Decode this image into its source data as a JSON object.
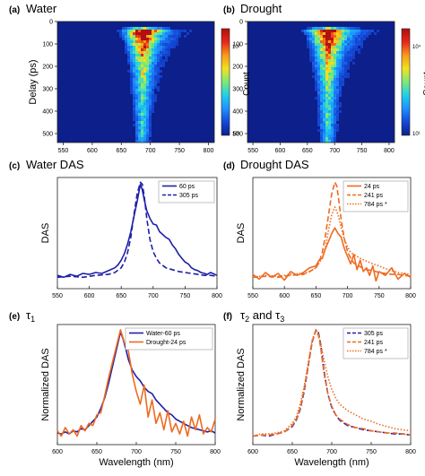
{
  "colors": {
    "blue": "#1f1fa8",
    "orange": "#ef6a1f",
    "axis": "#222222"
  },
  "heat_colormap": [
    "#0d1f8a",
    "#1448d8",
    "#1e90ff",
    "#1fd0e8",
    "#7de87a",
    "#f2e21e",
    "#f79a1a",
    "#e8281a",
    "#b01010"
  ],
  "chart_data": [
    {
      "id": "a",
      "type": "heatmap",
      "panel_letter": "(a)",
      "title": "Water",
      "ylabel": "Delay (ps)",
      "xlabel": "",
      "x_ticks": [
        "550",
        "600",
        "650",
        "700",
        "750",
        "800"
      ],
      "y_ticks": [
        "0",
        "100",
        "200",
        "300",
        "400",
        "500"
      ],
      "xlim": [
        540,
        810
      ],
      "ylim": [
        0,
        540
      ],
      "colorbar": {
        "label": "Count",
        "max_label": "10²",
        "min_label": "10¹"
      },
      "signal": {
        "peak_wavelength": 682,
        "onset_delay": 30,
        "half_width_at_onset": 35,
        "half_width_at_end": 12
      }
    },
    {
      "id": "b",
      "type": "heatmap",
      "panel_letter": "(b)",
      "title": "Drought",
      "ylabel": "",
      "xlabel": "",
      "x_ticks": [
        "550",
        "600",
        "650",
        "700",
        "750",
        "800"
      ],
      "y_ticks": [
        "0",
        "100",
        "200",
        "300",
        "400",
        "500"
      ],
      "xlim": [
        540,
        810
      ],
      "ylim": [
        0,
        540
      ],
      "colorbar": {
        "label": "Count",
        "max_label": "10⁴",
        "min_label": "10¹"
      },
      "signal": {
        "peak_wavelength": 682,
        "onset_delay": 30,
        "half_width_at_onset": 40,
        "half_width_at_end": 14
      }
    },
    {
      "id": "c",
      "type": "line",
      "panel_letter": "(c)",
      "title": "Water DAS",
      "ylabel": "DAS",
      "xlabel": "",
      "x_ticks": [
        "550",
        "600",
        "650",
        "700",
        "750",
        "800"
      ],
      "xlim": [
        550,
        800
      ],
      "ylim": [
        -0.12,
        1.05
      ],
      "legend_position": "top-right",
      "series": [
        {
          "name": "60 ps",
          "color": "#1f1fa8",
          "dash": "solid",
          "x": [
            550,
            560,
            570,
            580,
            590,
            600,
            610,
            620,
            630,
            640,
            645,
            650,
            655,
            660,
            665,
            670,
            675,
            680,
            683,
            686,
            690,
            695,
            700,
            705,
            710,
            715,
            720,
            725,
            730,
            735,
            740,
            745,
            750,
            755,
            760,
            765,
            770,
            775,
            780,
            785,
            790,
            800
          ],
          "y": [
            0.02,
            0.0,
            0.03,
            0.01,
            0.04,
            0.03,
            0.05,
            0.04,
            0.07,
            0.1,
            0.13,
            0.18,
            0.25,
            0.35,
            0.48,
            0.64,
            0.8,
            0.98,
            0.92,
            0.82,
            0.7,
            0.62,
            0.56,
            0.55,
            0.48,
            0.45,
            0.42,
            0.4,
            0.34,
            0.3,
            0.24,
            0.2,
            0.16,
            0.14,
            0.1,
            0.08,
            0.07,
            0.05,
            0.04,
            0.03,
            0.05,
            0.02
          ]
        },
        {
          "name": "305 ps",
          "color": "#1f1fa8",
          "dash": "dashed",
          "x": [
            550,
            570,
            590,
            610,
            630,
            640,
            650,
            655,
            660,
            665,
            670,
            675,
            680,
            683,
            686,
            690,
            695,
            700,
            705,
            710,
            720,
            730,
            740,
            750,
            760,
            770,
            780,
            790,
            800
          ],
          "y": [
            0.0,
            0.01,
            0.0,
            0.02,
            0.03,
            0.05,
            0.1,
            0.16,
            0.26,
            0.42,
            0.66,
            0.88,
            1.0,
            0.98,
            0.86,
            0.62,
            0.4,
            0.27,
            0.2,
            0.15,
            0.1,
            0.08,
            0.06,
            0.05,
            0.04,
            0.03,
            0.02,
            0.02,
            0.01
          ]
        }
      ]
    },
    {
      "id": "d",
      "type": "line",
      "panel_letter": "(d)",
      "title": "Drought DAS",
      "ylabel": "DAS",
      "xlabel": "",
      "x_ticks": [
        "550",
        "600",
        "650",
        "700",
        "750",
        "800"
      ],
      "xlim": [
        550,
        800
      ],
      "ylim": [
        -0.12,
        1.05
      ],
      "legend_position": "top-right",
      "series": [
        {
          "name": "24 ps",
          "color": "#ef6a1f",
          "dash": "solid",
          "x": [
            550,
            560,
            570,
            580,
            590,
            600,
            610,
            620,
            630,
            640,
            650,
            655,
            660,
            665,
            670,
            675,
            680,
            685,
            690,
            695,
            700,
            705,
            710,
            715,
            720,
            725,
            730,
            735,
            740,
            745,
            750,
            760,
            770,
            780,
            790,
            800
          ],
          "y": [
            0.03,
            -0.02,
            0.05,
            0.0,
            0.04,
            -0.03,
            0.06,
            0.02,
            0.05,
            0.1,
            0.12,
            0.18,
            0.2,
            0.3,
            0.38,
            0.46,
            0.52,
            0.46,
            0.42,
            0.3,
            0.22,
            0.14,
            0.24,
            0.08,
            0.18,
            0.06,
            0.1,
            0.02,
            0.12,
            -0.04,
            0.06,
            0.02,
            0.1,
            -0.02,
            0.04,
            0.0
          ]
        },
        {
          "name": "241 ps",
          "color": "#ef6a1f",
          "dash": "dashed",
          "x": [
            550,
            570,
            590,
            610,
            630,
            640,
            650,
            655,
            660,
            665,
            670,
            675,
            680,
            683,
            686,
            690,
            695,
            700,
            705,
            710,
            720,
            730,
            740,
            750,
            760,
            770,
            780,
            790,
            800
          ],
          "y": [
            0.0,
            0.01,
            0.0,
            0.02,
            0.03,
            0.06,
            0.1,
            0.16,
            0.26,
            0.44,
            0.66,
            0.88,
            1.0,
            0.96,
            0.82,
            0.6,
            0.4,
            0.27,
            0.2,
            0.15,
            0.11,
            0.08,
            0.07,
            0.05,
            0.04,
            0.03,
            0.03,
            0.02,
            0.01
          ]
        },
        {
          "name": "784 ps *",
          "color": "#ef6a1f",
          "dash": "dotted",
          "x": [
            550,
            570,
            590,
            610,
            630,
            640,
            650,
            660,
            665,
            670,
            675,
            680,
            685,
            690,
            695,
            700,
            705,
            710,
            720,
            730,
            740,
            750,
            760,
            770,
            780,
            790,
            800
          ],
          "y": [
            0.0,
            0.02,
            0.01,
            0.03,
            0.04,
            0.06,
            0.1,
            0.2,
            0.32,
            0.5,
            0.66,
            0.74,
            0.66,
            0.52,
            0.4,
            0.32,
            0.26,
            0.24,
            0.2,
            0.17,
            0.14,
            0.12,
            0.09,
            0.07,
            0.05,
            0.04,
            0.03
          ]
        }
      ]
    },
    {
      "id": "e",
      "type": "line",
      "panel_letter": "(e)",
      "title": "τ",
      "title_subscript": "1",
      "ylabel": "Normalized DAS",
      "xlabel": "Wavelength (nm)",
      "x_ticks": [
        "600",
        "650",
        "700",
        "750",
        "800"
      ],
      "xlim": [
        600,
        800
      ],
      "ylim": [
        -0.08,
        1.05
      ],
      "legend_position": "top-right",
      "series": [
        {
          "name": "Water-60 ps",
          "color": "#1f1fa8",
          "dash": "solid",
          "x": [
            600,
            605,
            610,
            615,
            620,
            625,
            630,
            635,
            640,
            645,
            650,
            655,
            660,
            665,
            670,
            675,
            680,
            683,
            686,
            690,
            695,
            700,
            705,
            710,
            715,
            720,
            725,
            730,
            735,
            740,
            745,
            750,
            755,
            760,
            765,
            770,
            775,
            780,
            785,
            790,
            795,
            800
          ],
          "y": [
            0.03,
            0.02,
            0.04,
            0.02,
            0.05,
            0.04,
            0.07,
            0.06,
            0.1,
            0.14,
            0.18,
            0.26,
            0.36,
            0.5,
            0.66,
            0.82,
            0.98,
            0.92,
            0.84,
            0.72,
            0.62,
            0.56,
            0.52,
            0.46,
            0.42,
            0.4,
            0.34,
            0.3,
            0.26,
            0.22,
            0.2,
            0.16,
            0.14,
            0.12,
            0.1,
            0.08,
            0.07,
            0.06,
            0.05,
            0.04,
            0.05,
            0.03
          ]
        },
        {
          "name": "Drought-24 ps",
          "color": "#ef6a1f",
          "dash": "solid",
          "x": [
            600,
            605,
            610,
            615,
            620,
            625,
            630,
            635,
            640,
            645,
            650,
            655,
            660,
            665,
            670,
            675,
            680,
            685,
            690,
            695,
            700,
            705,
            710,
            715,
            720,
            725,
            730,
            735,
            740,
            745,
            750,
            755,
            760,
            765,
            770,
            775,
            780,
            785,
            790,
            795,
            800
          ],
          "y": [
            0.05,
            0.0,
            0.08,
            0.02,
            0.06,
            0.0,
            0.1,
            0.05,
            0.12,
            0.1,
            0.2,
            0.22,
            0.38,
            0.55,
            0.7,
            0.85,
            1.0,
            0.88,
            0.8,
            0.58,
            0.42,
            0.3,
            0.48,
            0.18,
            0.34,
            0.12,
            0.22,
            0.06,
            0.24,
            0.04,
            0.12,
            0.02,
            0.14,
            0.0,
            0.18,
            0.06,
            0.2,
            0.02,
            0.08,
            0.04,
            0.16
          ]
        }
      ]
    },
    {
      "id": "f",
      "type": "line",
      "panel_letter": "(f)",
      "title_parts": [
        "τ",
        "2",
        " and τ",
        "3"
      ],
      "ylabel": "Normalized DAS",
      "xlabel": "Wavelength (nm)",
      "x_ticks": [
        "600",
        "650",
        "700",
        "750",
        "800"
      ],
      "xlim": [
        600,
        800
      ],
      "ylim": [
        -0.08,
        1.05
      ],
      "legend_position": "top-right",
      "series": [
        {
          "name": "305 ps",
          "color": "#1f1fa8",
          "dash": "dashed",
          "x": [
            600,
            610,
            620,
            630,
            640,
            650,
            655,
            660,
            665,
            670,
            675,
            680,
            683,
            686,
            690,
            695,
            700,
            705,
            710,
            720,
            730,
            740,
            750,
            760,
            770,
            780,
            790,
            800
          ],
          "y": [
            0.0,
            0.01,
            0.0,
            0.02,
            0.04,
            0.09,
            0.15,
            0.25,
            0.42,
            0.65,
            0.88,
            1.0,
            0.98,
            0.86,
            0.62,
            0.4,
            0.27,
            0.2,
            0.15,
            0.1,
            0.08,
            0.06,
            0.05,
            0.04,
            0.03,
            0.02,
            0.02,
            0.01
          ]
        },
        {
          "name": "241 ps",
          "color": "#ef6a1f",
          "dash": "dashed",
          "x": [
            600,
            610,
            620,
            630,
            640,
            650,
            655,
            660,
            665,
            670,
            675,
            680,
            683,
            686,
            690,
            695,
            700,
            705,
            710,
            720,
            730,
            740,
            750,
            760,
            770,
            780,
            790,
            800
          ],
          "y": [
            0.0,
            0.01,
            0.01,
            0.02,
            0.04,
            0.1,
            0.16,
            0.26,
            0.44,
            0.66,
            0.88,
            1.0,
            0.96,
            0.83,
            0.6,
            0.4,
            0.28,
            0.2,
            0.16,
            0.11,
            0.08,
            0.07,
            0.05,
            0.04,
            0.03,
            0.03,
            0.02,
            0.01
          ]
        },
        {
          "name": "784 ps *",
          "color": "#ef6a1f",
          "dash": "dotted",
          "x": [
            600,
            610,
            620,
            630,
            640,
            650,
            655,
            660,
            665,
            670,
            675,
            680,
            685,
            690,
            695,
            700,
            705,
            710,
            720,
            730,
            740,
            750,
            760,
            770,
            780,
            790,
            800
          ],
          "y": [
            0.0,
            0.02,
            0.02,
            0.03,
            0.05,
            0.12,
            0.18,
            0.3,
            0.46,
            0.68,
            0.9,
            1.0,
            0.9,
            0.72,
            0.56,
            0.44,
            0.36,
            0.3,
            0.24,
            0.2,
            0.16,
            0.14,
            0.11,
            0.09,
            0.07,
            0.06,
            0.05
          ]
        }
      ]
    }
  ]
}
